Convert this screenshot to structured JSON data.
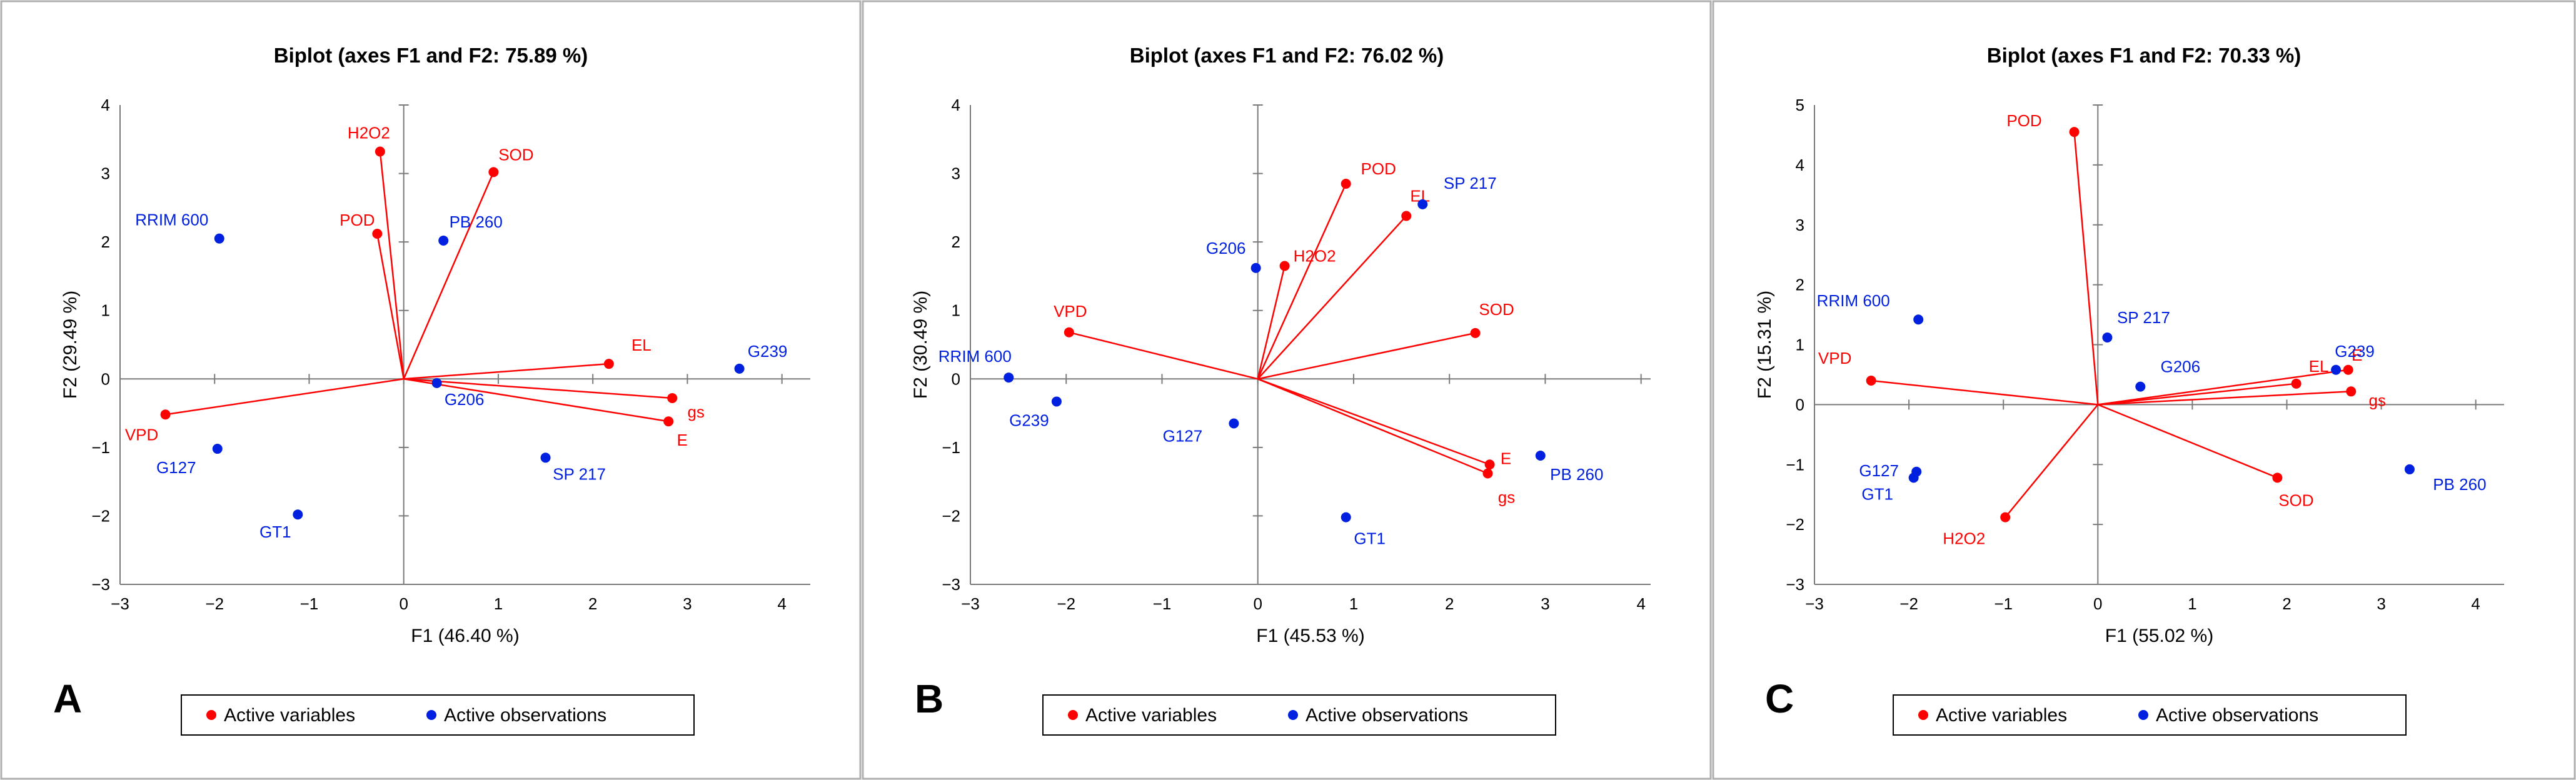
{
  "colors": {
    "variable": "#ff0000",
    "observation": "#0020e0",
    "axis": "#7a7a7a",
    "frame": "#b0b0b0",
    "text": "#000000"
  },
  "chart_data": [
    {
      "type": "scatter",
      "panel_letter": "A",
      "title": "Biplot (axes F1 and F2: 75.89 %)",
      "xlabel": "F1 (46.40 %)",
      "ylabel": "F2 (29.49 %)",
      "xlim": [
        -3,
        4.3
      ],
      "ylim": [
        -3,
        4
      ],
      "xticks": [
        -3,
        -2,
        -1,
        0,
        1,
        2,
        3,
        4
      ],
      "yticks": [
        -3,
        -2,
        -1,
        0,
        1,
        2,
        3,
        4
      ],
      "legend": {
        "variables": "Active variables",
        "observations": "Active observations",
        "position": "bottom"
      },
      "variables": [
        {
          "name": "H2O2",
          "x": -0.25,
          "y": 3.32
        },
        {
          "name": "SOD",
          "x": 0.95,
          "y": 3.02
        },
        {
          "name": "POD",
          "x": -0.28,
          "y": 2.12
        },
        {
          "name": "EL",
          "x": 2.17,
          "y": 0.22
        },
        {
          "name": "gs",
          "x": 2.84,
          "y": -0.28
        },
        {
          "name": "E",
          "x": 2.8,
          "y": -0.62
        },
        {
          "name": "VPD",
          "x": -2.52,
          "y": -0.52
        }
      ],
      "observations": [
        {
          "name": "RRIM 600",
          "x": -1.95,
          "y": 2.05
        },
        {
          "name": "PB 260",
          "x": 0.42,
          "y": 2.02
        },
        {
          "name": "G239",
          "x": 3.55,
          "y": 0.15
        },
        {
          "name": "G206",
          "x": 0.35,
          "y": -0.06
        },
        {
          "name": "G127",
          "x": -1.97,
          "y": -1.02
        },
        {
          "name": "SP 217",
          "x": 1.5,
          "y": -1.15
        },
        {
          "name": "GT1",
          "x": -1.12,
          "y": -1.98
        }
      ]
    },
    {
      "type": "scatter",
      "panel_letter": "B",
      "title": "Biplot (axes F1 and F2: 76.02 %)",
      "xlabel": "F1 (45.53 %)",
      "ylabel": "F2 (30.49 %)",
      "xlim": [
        -3,
        4.1
      ],
      "ylim": [
        -3,
        4
      ],
      "xticks": [
        -3,
        -2,
        -1,
        0,
        1,
        2,
        3,
        4
      ],
      "yticks": [
        -3,
        -2,
        -1,
        0,
        1,
        2,
        3,
        4
      ],
      "legend": {
        "variables": "Active variables",
        "observations": "Active observations",
        "position": "bottom"
      },
      "variables": [
        {
          "name": "POD",
          "x": 0.92,
          "y": 2.85
        },
        {
          "name": "EL",
          "x": 1.55,
          "y": 2.38
        },
        {
          "name": "H2O2",
          "x": 0.28,
          "y": 1.65
        },
        {
          "name": "VPD",
          "x": -1.97,
          "y": 0.68
        },
        {
          "name": "SOD",
          "x": 2.27,
          "y": 0.67
        },
        {
          "name": "E",
          "x": 2.42,
          "y": -1.25
        },
        {
          "name": "gs",
          "x": 2.4,
          "y": -1.38
        }
      ],
      "observations": [
        {
          "name": "SP 217",
          "x": 1.72,
          "y": 2.55
        },
        {
          "name": "G206",
          "x": -0.02,
          "y": 1.62
        },
        {
          "name": "RRIM 600",
          "x": -2.6,
          "y": 0.02
        },
        {
          "name": "G239",
          "x": -2.1,
          "y": -0.33
        },
        {
          "name": "G127",
          "x": -0.25,
          "y": -0.65
        },
        {
          "name": "PB 260",
          "x": 2.95,
          "y": -1.12
        },
        {
          "name": "GT1",
          "x": 0.92,
          "y": -2.02
        }
      ]
    },
    {
      "type": "scatter",
      "panel_letter": "C",
      "title": "Biplot (axes F1 and F2: 70.33 %)",
      "xlabel": "F1 (55.02 %)",
      "ylabel": "F2 (15.31 %)",
      "xlim": [
        -3,
        4.3
      ],
      "ylim": [
        -3,
        5
      ],
      "xticks": [
        -3,
        -2,
        -1,
        0,
        1,
        2,
        3,
        4
      ],
      "yticks": [
        -3,
        -2,
        -1,
        0,
        1,
        2,
        3,
        4,
        5
      ],
      "legend": {
        "variables": "Active variables",
        "observations": "Active observations",
        "position": "bottom"
      },
      "variables": [
        {
          "name": "POD",
          "x": -0.25,
          "y": 4.55
        },
        {
          "name": "E",
          "x": 2.65,
          "y": 0.58
        },
        {
          "name": "EL",
          "x": 2.1,
          "y": 0.35
        },
        {
          "name": "gs",
          "x": 2.68,
          "y": 0.22
        },
        {
          "name": "VPD",
          "x": -2.4,
          "y": 0.4
        },
        {
          "name": "SOD",
          "x": 1.9,
          "y": -1.22
        },
        {
          "name": "H2O2",
          "x": -0.98,
          "y": -1.88
        }
      ],
      "observations": [
        {
          "name": "RRIM 600",
          "x": -1.9,
          "y": 1.42
        },
        {
          "name": "SP 217",
          "x": 0.1,
          "y": 1.12
        },
        {
          "name": "G239",
          "x": 2.52,
          "y": 0.58
        },
        {
          "name": "G206",
          "x": 0.45,
          "y": 0.3
        },
        {
          "name": "G127",
          "x": -1.92,
          "y": -1.12
        },
        {
          "name": "GT1",
          "x": -1.95,
          "y": -1.22
        },
        {
          "name": "PB 260",
          "x": 3.3,
          "y": -1.08
        }
      ]
    }
  ]
}
